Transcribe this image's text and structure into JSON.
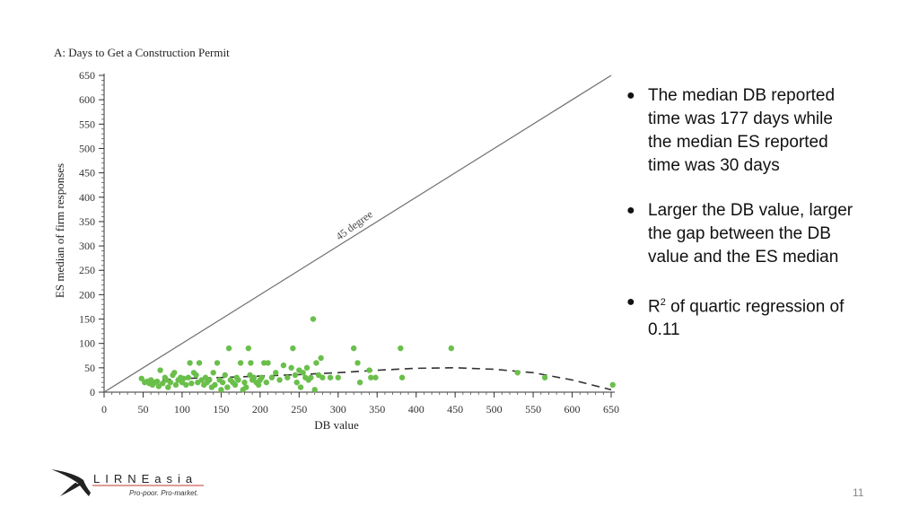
{
  "slide": {
    "bullets": [
      {
        "text": "The median DB reported time was 177 days while the median ES reported time was 30 days"
      },
      {
        "text": "Larger the DB value, larger the gap between the DB value and the ES median"
      },
      {
        "text_before": "R",
        "superscript": "2",
        "text_after": " of quartic regression of 0.11"
      }
    ],
    "page_number": "11"
  },
  "logo": {
    "name": "LIRNEasia",
    "tagline": "Pro-poor. Pro-market."
  },
  "chart_data": {
    "type": "scatter",
    "title": "A: Days to Get a Construction Permit",
    "xlabel": "DB value",
    "ylabel": "ES median of firm responses",
    "xlim": [
      0,
      650
    ],
    "ylim": [
      0,
      650
    ],
    "x_ticks": [
      0,
      50,
      100,
      150,
      200,
      250,
      300,
      350,
      400,
      450,
      500,
      550,
      600,
      650
    ],
    "y_ticks": [
      0,
      50,
      100,
      150,
      200,
      250,
      300,
      350,
      400,
      450,
      500,
      550,
      600,
      650
    ],
    "grid": false,
    "reference_line": {
      "label": "45 degree",
      "from": [
        0,
        0
      ],
      "to": [
        650,
        650
      ],
      "color": "#6e6e6e"
    },
    "fit_line": {
      "label": "quartic regression",
      "style": "dashed",
      "color": "#333333",
      "points": [
        [
          75,
          25
        ],
        [
          100,
          28
        ],
        [
          150,
          30
        ],
        [
          200,
          33
        ],
        [
          250,
          36
        ],
        [
          300,
          40
        ],
        [
          350,
          45
        ],
        [
          400,
          49
        ],
        [
          450,
          50
        ],
        [
          500,
          47
        ],
        [
          550,
          40
        ],
        [
          600,
          25
        ],
        [
          650,
          5
        ]
      ]
    },
    "series": [
      {
        "color": "#6abf4b",
        "points": [
          [
            48,
            28
          ],
          [
            52,
            20
          ],
          [
            55,
            22
          ],
          [
            58,
            18
          ],
          [
            60,
            25
          ],
          [
            62,
            15
          ],
          [
            65,
            20
          ],
          [
            68,
            22
          ],
          [
            70,
            12
          ],
          [
            72,
            45
          ],
          [
            75,
            18
          ],
          [
            78,
            30
          ],
          [
            80,
            25
          ],
          [
            82,
            10
          ],
          [
            85,
            20
          ],
          [
            88,
            35
          ],
          [
            90,
            40
          ],
          [
            92,
            15
          ],
          [
            95,
            25
          ],
          [
            98,
            30
          ],
          [
            100,
            20
          ],
          [
            102,
            28
          ],
          [
            105,
            15
          ],
          [
            108,
            30
          ],
          [
            110,
            60
          ],
          [
            112,
            18
          ],
          [
            115,
            40
          ],
          [
            118,
            35
          ],
          [
            120,
            20
          ],
          [
            122,
            60
          ],
          [
            125,
            25
          ],
          [
            128,
            15
          ],
          [
            130,
            30
          ],
          [
            132,
            20
          ],
          [
            135,
            25
          ],
          [
            138,
            10
          ],
          [
            140,
            40
          ],
          [
            142,
            15
          ],
          [
            145,
            60
          ],
          [
            148,
            25
          ],
          [
            150,
            5
          ],
          [
            152,
            20
          ],
          [
            155,
            35
          ],
          [
            158,
            10
          ],
          [
            160,
            90
          ],
          [
            162,
            25
          ],
          [
            165,
            20
          ],
          [
            168,
            15
          ],
          [
            170,
            30
          ],
          [
            172,
            25
          ],
          [
            175,
            60
          ],
          [
            178,
            5
          ],
          [
            180,
            20
          ],
          [
            182,
            10
          ],
          [
            185,
            90
          ],
          [
            187,
            35
          ],
          [
            188,
            60
          ],
          [
            190,
            25
          ],
          [
            192,
            30
          ],
          [
            195,
            20
          ],
          [
            198,
            15
          ],
          [
            200,
            25
          ],
          [
            202,
            30
          ],
          [
            205,
            60
          ],
          [
            208,
            20
          ],
          [
            210,
            60
          ],
          [
            215,
            30
          ],
          [
            220,
            40
          ],
          [
            225,
            25
          ],
          [
            230,
            55
          ],
          [
            235,
            30
          ],
          [
            240,
            50
          ],
          [
            242,
            90
          ],
          [
            245,
            35
          ],
          [
            247,
            20
          ],
          [
            250,
            45
          ],
          [
            252,
            10
          ],
          [
            255,
            40
          ],
          [
            258,
            30
          ],
          [
            260,
            50
          ],
          [
            262,
            25
          ],
          [
            265,
            30
          ],
          [
            268,
            150
          ],
          [
            270,
            5
          ],
          [
            272,
            60
          ],
          [
            275,
            35
          ],
          [
            278,
            70
          ],
          [
            280,
            30
          ],
          [
            290,
            30
          ],
          [
            300,
            30
          ],
          [
            320,
            90
          ],
          [
            325,
            60
          ],
          [
            328,
            20
          ],
          [
            340,
            45
          ],
          [
            342,
            30
          ],
          [
            348,
            30
          ],
          [
            380,
            90
          ],
          [
            382,
            30
          ],
          [
            445,
            90
          ],
          [
            530,
            40
          ],
          [
            565,
            30
          ],
          [
            652,
            15
          ]
        ]
      }
    ]
  }
}
